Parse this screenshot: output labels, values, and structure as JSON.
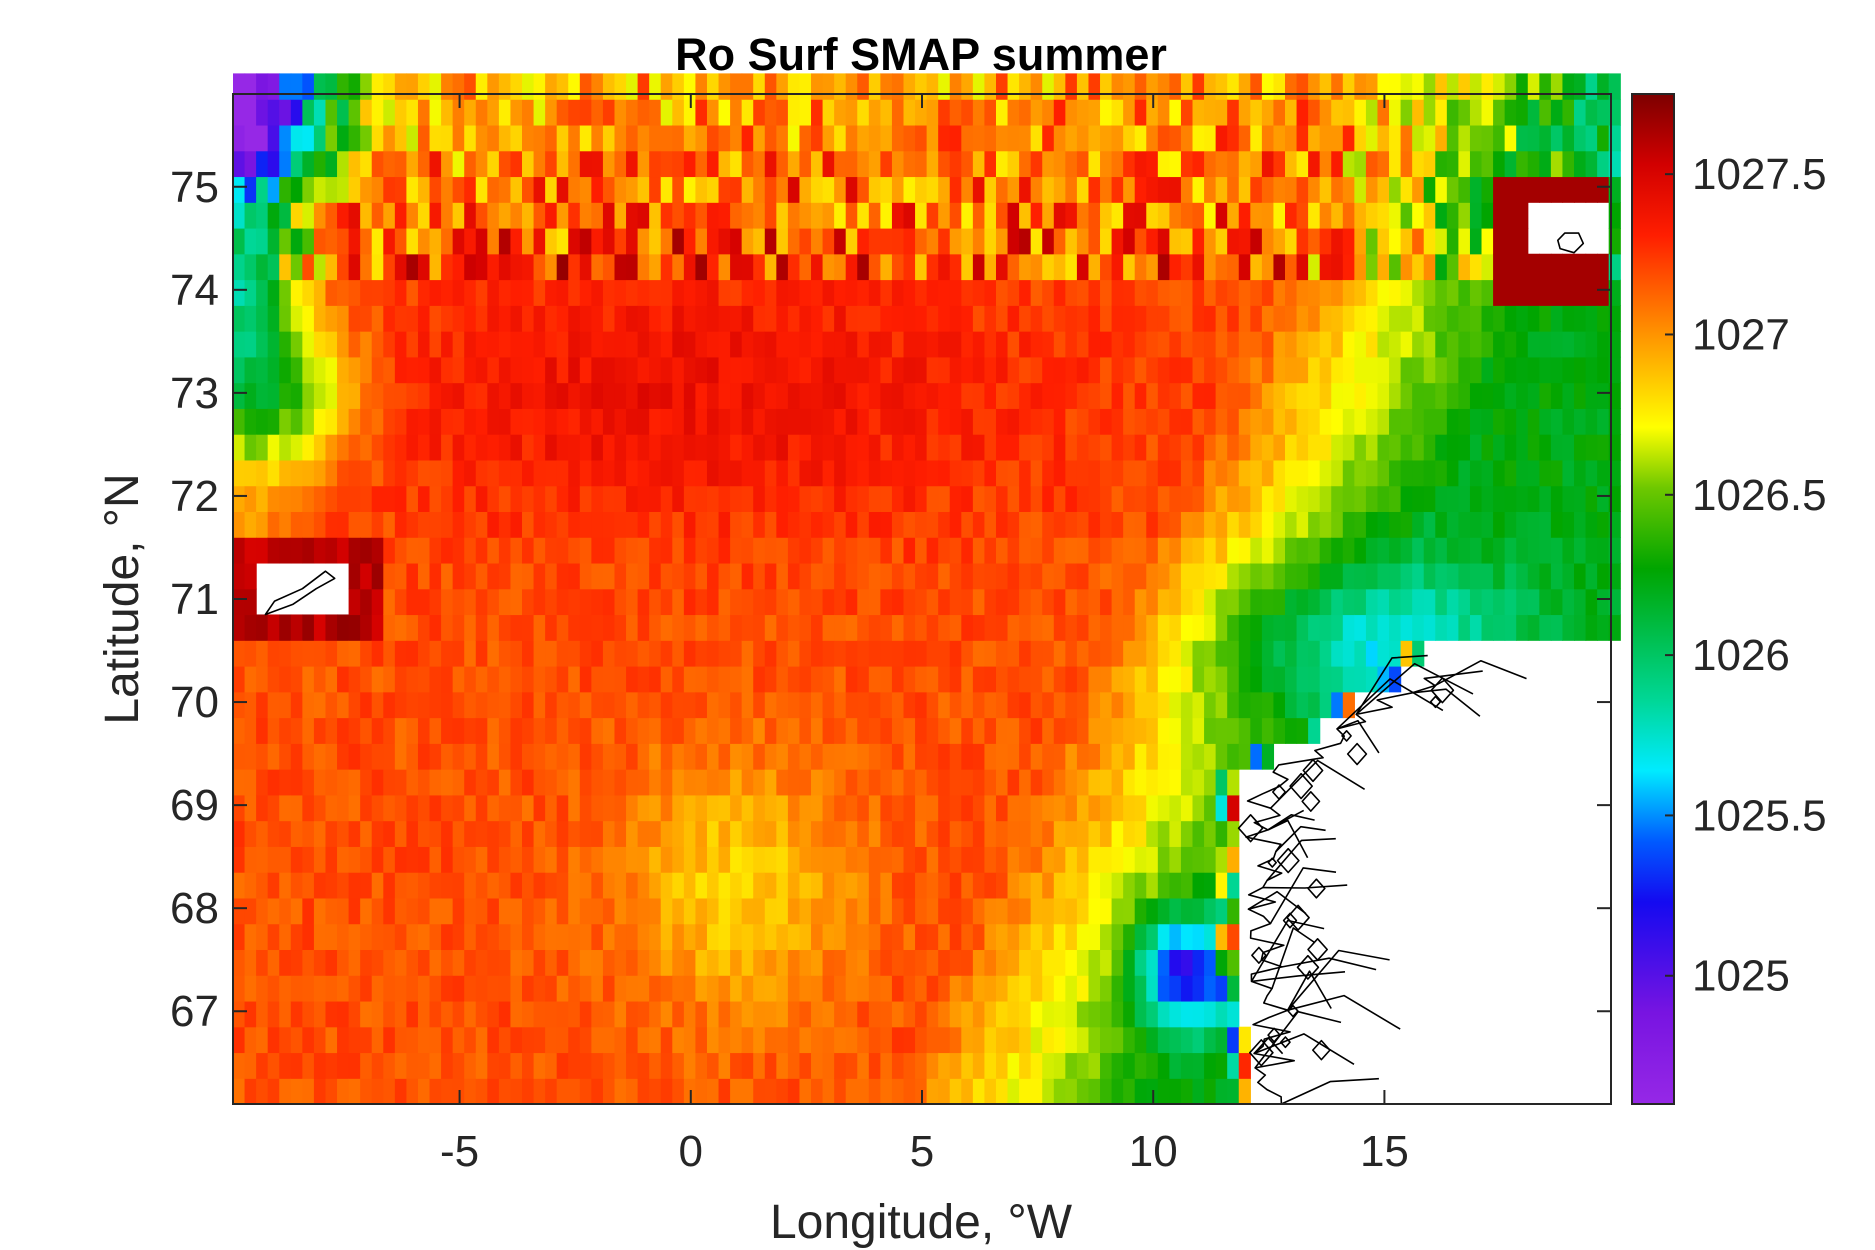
{
  "chart_data": {
    "type": "heatmap",
    "title": "Ro Surf SMAP summer",
    "xlabel": "Longitude, °W",
    "ylabel": "Latitude, °N",
    "xlim": [
      -9.9,
      19.9
    ],
    "ylim": [
      66.1,
      75.9
    ],
    "xticks": [
      -5,
      0,
      5,
      10,
      15
    ],
    "xtick_labels": [
      "-5",
      "0",
      "5",
      "10",
      "15"
    ],
    "yticks": [
      67,
      68,
      69,
      70,
      71,
      72,
      73,
      74,
      75
    ],
    "ytick_labels": [
      "67",
      "68",
      "69",
      "70",
      "71",
      "72",
      "73",
      "74",
      "75"
    ],
    "colorbar": {
      "min": 1024.6,
      "max": 1027.75,
      "ticks": [
        1025,
        1025.5,
        1026,
        1026.5,
        1027,
        1027.5
      ],
      "tick_labels": [
        "1025",
        "1025.5",
        "1026",
        "1026.5",
        "1027",
        "1027.5"
      ],
      "colormap": "jet-like (violet-blue-cyan-green-yellow-red-darkred)",
      "colors": [
        "#8a2be2",
        "#0000ff",
        "#00ffff",
        "#00b000",
        "#ffff00",
        "#ff0000",
        "#800000"
      ]
    },
    "grid": false,
    "masked_regions": [
      "Jan Mayen island",
      "Bear Island",
      "Norwegian coast"
    ],
    "value_description_by_region": [
      {
        "region": "central and western Norwegian Sea",
        "value": 1027.2
      },
      {
        "region": "near 73N, -5 to 5",
        "value": 1027.4
      },
      {
        "region": "eastern coastal band (Norwegian Coastal Current)",
        "value": 1026.3
      },
      {
        "region": "near 67.5N, 10.5E",
        "value": 1025.6
      },
      {
        "region": "northwest corner near 75.5N, -9",
        "value": 1025.2
      }
    ]
  }
}
